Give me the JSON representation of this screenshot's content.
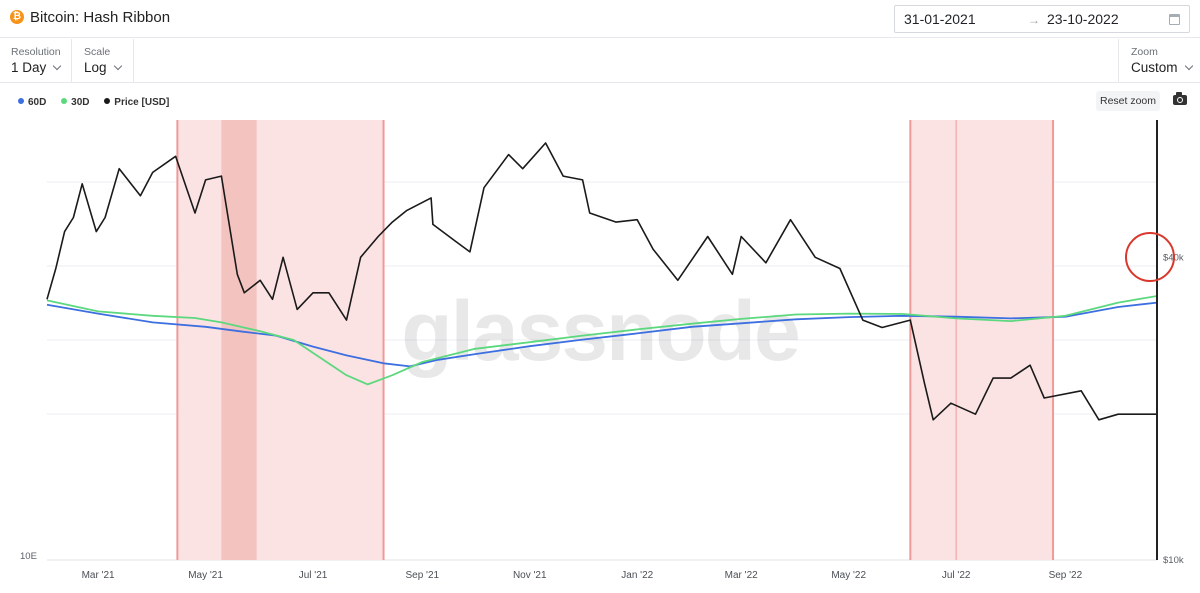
{
  "header": {
    "title": "Bitcoin: Hash Ribbon",
    "date_from": "31-01-2021",
    "date_arrow": "→",
    "date_to": "23-10-2022"
  },
  "controls": {
    "resolution_label": "Resolution",
    "resolution_value": "1 Day",
    "scale_label": "Scale",
    "scale_value": "Log",
    "zoom_label": "Zoom",
    "zoom_value": "Custom"
  },
  "toolbar": {
    "reset_zoom_label": "Reset zoom"
  },
  "watermark": "glassnode",
  "colors": {
    "ma60": "#3d6fe0",
    "ma30": "#5cd87e",
    "price": "#1a1a1a",
    "capitulation_band": "#fbe3e3",
    "capitulation_dark": "#f3c3c0",
    "band_edge": "#ee9a9a",
    "highlight_circle": "#d9382c"
  },
  "chart_data": {
    "type": "line",
    "title": "Bitcoin: Hash Ribbon",
    "x_range": [
      "2021-01-31",
      "2022-10-23"
    ],
    "xticks": [
      {
        "date": "2021-03-01",
        "label": "Mar '21"
      },
      {
        "date": "2021-05-01",
        "label": "May '21"
      },
      {
        "date": "2021-07-01",
        "label": "Jul '21"
      },
      {
        "date": "2021-09-01",
        "label": "Sep '21"
      },
      {
        "date": "2021-11-01",
        "label": "Nov '21"
      },
      {
        "date": "2022-01-01",
        "label": "Jan '22"
      },
      {
        "date": "2022-03-01",
        "label": "Mar '22"
      },
      {
        "date": "2022-05-01",
        "label": "May '22"
      },
      {
        "date": "2022-07-01",
        "label": "Jul '22"
      },
      {
        "date": "2022-09-01",
        "label": "Sep '22"
      }
    ],
    "right_axis": {
      "scale": "log",
      "ticks": [
        {
          "value": 10000,
          "label": "$10k"
        },
        {
          "value": 40000,
          "label": "$40k"
        }
      ]
    },
    "left_axis": {
      "ticks": [
        {
          "label": "10E"
        }
      ]
    },
    "grid": true,
    "legend_position": "top-left",
    "series": [
      {
        "name": "60D",
        "color": "#3d6fe0",
        "points": [
          [
            "2021-01-31",
            0.42
          ],
          [
            "2021-03-01",
            0.44
          ],
          [
            "2021-04-01",
            0.46
          ],
          [
            "2021-05-01",
            0.47
          ],
          [
            "2021-05-20",
            0.48
          ],
          [
            "2021-06-10",
            0.49
          ],
          [
            "2021-07-01",
            0.515
          ],
          [
            "2021-07-20",
            0.535
          ],
          [
            "2021-08-10",
            0.553
          ],
          [
            "2021-08-25",
            0.56
          ],
          [
            "2021-09-10",
            0.545
          ],
          [
            "2021-10-01",
            0.532
          ],
          [
            "2021-11-01",
            0.514
          ],
          [
            "2021-12-01",
            0.499
          ],
          [
            "2022-01-01",
            0.485
          ],
          [
            "2022-02-01",
            0.47
          ],
          [
            "2022-03-01",
            0.462
          ],
          [
            "2022-04-01",
            0.453
          ],
          [
            "2022-05-01",
            0.448
          ],
          [
            "2022-06-01",
            0.445
          ],
          [
            "2022-07-01",
            0.447
          ],
          [
            "2022-08-01",
            0.451
          ],
          [
            "2022-09-01",
            0.447
          ],
          [
            "2022-10-01",
            0.425
          ],
          [
            "2022-10-23",
            0.415
          ]
        ]
      },
      {
        "name": "30D",
        "color": "#5cd87e",
        "points": [
          [
            "2021-01-31",
            0.41
          ],
          [
            "2021-03-01",
            0.435
          ],
          [
            "2021-04-01",
            0.445
          ],
          [
            "2021-04-25",
            0.45
          ],
          [
            "2021-05-10",
            0.46
          ],
          [
            "2021-06-01",
            0.48
          ],
          [
            "2021-06-20",
            0.5
          ],
          [
            "2021-07-05",
            0.54
          ],
          [
            "2021-07-20",
            0.58
          ],
          [
            "2021-08-01",
            0.601
          ],
          [
            "2021-08-15",
            0.58
          ],
          [
            "2021-09-01",
            0.55
          ],
          [
            "2021-10-01",
            0.52
          ],
          [
            "2021-11-01",
            0.505
          ],
          [
            "2021-12-01",
            0.49
          ],
          [
            "2022-01-01",
            0.476
          ],
          [
            "2022-02-01",
            0.463
          ],
          [
            "2022-03-01",
            0.452
          ],
          [
            "2022-04-01",
            0.442
          ],
          [
            "2022-05-01",
            0.44
          ],
          [
            "2022-06-01",
            0.441
          ],
          [
            "2022-07-01",
            0.451
          ],
          [
            "2022-08-01",
            0.457
          ],
          [
            "2022-09-01",
            0.445
          ],
          [
            "2022-10-01",
            0.415
          ],
          [
            "2022-10-23",
            0.4
          ]
        ]
      },
      {
        "name": "Price [USD]",
        "color": "#1a1a1a",
        "points": [
          [
            "2021-01-31",
            33000
          ],
          [
            "2021-02-05",
            38000
          ],
          [
            "2021-02-10",
            45000
          ],
          [
            "2021-02-15",
            48000
          ],
          [
            "2021-02-20",
            56000
          ],
          [
            "2021-02-28",
            45000
          ],
          [
            "2021-03-05",
            48000
          ],
          [
            "2021-03-13",
            60000
          ],
          [
            "2021-03-25",
            53000
          ],
          [
            "2021-04-01",
            59000
          ],
          [
            "2021-04-14",
            63500
          ],
          [
            "2021-04-25",
            49000
          ],
          [
            "2021-05-01",
            57000
          ],
          [
            "2021-05-10",
            58000
          ],
          [
            "2021-05-19",
            37000
          ],
          [
            "2021-05-23",
            34000
          ],
          [
            "2021-06-01",
            36000
          ],
          [
            "2021-06-08",
            33000
          ],
          [
            "2021-06-14",
            40000
          ],
          [
            "2021-06-22",
            31500
          ],
          [
            "2021-07-01",
            34000
          ],
          [
            "2021-07-10",
            34000
          ],
          [
            "2021-07-20",
            30000
          ],
          [
            "2021-07-28",
            40000
          ],
          [
            "2021-08-07",
            44000
          ],
          [
            "2021-08-15",
            47000
          ],
          [
            "2021-08-23",
            49500
          ],
          [
            "2021-09-06",
            52500
          ],
          [
            "2021-09-07",
            46500
          ],
          [
            "2021-09-20",
            43000
          ],
          [
            "2021-09-28",
            41000
          ],
          [
            "2021-10-06",
            55000
          ],
          [
            "2021-10-20",
            64000
          ],
          [
            "2021-10-28",
            60000
          ],
          [
            "2021-11-10",
            67500
          ],
          [
            "2021-11-20",
            58000
          ],
          [
            "2021-12-01",
            57000
          ],
          [
            "2021-12-05",
            49000
          ],
          [
            "2021-12-20",
            47000
          ],
          [
            "2022-01-01",
            47500
          ],
          [
            "2022-01-10",
            41500
          ],
          [
            "2022-01-24",
            36000
          ],
          [
            "2022-02-10",
            44000
          ],
          [
            "2022-02-24",
            37000
          ],
          [
            "2022-03-01",
            44000
          ],
          [
            "2022-03-15",
            39000
          ],
          [
            "2022-03-29",
            47500
          ],
          [
            "2022-04-12",
            40000
          ],
          [
            "2022-04-26",
            38000
          ],
          [
            "2022-05-09",
            30000
          ],
          [
            "2022-05-20",
            29000
          ],
          [
            "2022-06-05",
            30000
          ],
          [
            "2022-06-13",
            22500
          ],
          [
            "2022-06-18",
            19000
          ],
          [
            "2022-06-28",
            20500
          ],
          [
            "2022-07-12",
            19500
          ],
          [
            "2022-07-22",
            23000
          ],
          [
            "2022-08-01",
            23000
          ],
          [
            "2022-08-12",
            24400
          ],
          [
            "2022-08-20",
            21000
          ],
          [
            "2022-09-10",
            21700
          ],
          [
            "2022-09-20",
            19000
          ],
          [
            "2022-10-01",
            19500
          ],
          [
            "2022-10-23",
            19500
          ]
        ]
      }
    ],
    "shaded_regions": [
      {
        "start": "2021-04-15",
        "end": "2021-08-10",
        "kind": "capitulation"
      },
      {
        "start": "2021-05-10",
        "end": "2021-05-30",
        "kind": "capitulation_overlap"
      },
      {
        "start": "2022-06-05",
        "end": "2022-08-25",
        "kind": "capitulation"
      }
    ],
    "vertical_marker": "2022-10-23",
    "annotation": {
      "type": "circle",
      "at": "2022-10-23",
      "note": "60D and 30D crossover"
    }
  }
}
